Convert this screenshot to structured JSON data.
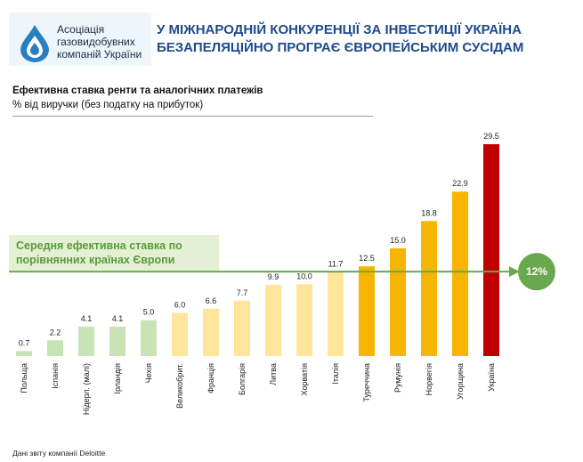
{
  "header": {
    "logo_lines": [
      "Асоціація",
      "газовидобувних",
      "компаній України"
    ],
    "headline_lines": [
      "У МІЖНАРОДНІЙ КОНКУРЕНЦІЇ ЗА ІНВЕСТИЦІЇ УКРАЇНА",
      "БЕЗАПЕЛЯЦІЙНО ПРОГРАЄ ЄВРОПЕЙСЬКИМ СУСІДАМ"
    ]
  },
  "average": {
    "label_lines": [
      "Середня ефективна ставка по",
      "порівнянних країнах Європи"
    ],
    "value_text": "12%"
  },
  "colors": {
    "green_light": "#c8e3b4",
    "yellow_light": "#fde59a",
    "orange": "#f7b500",
    "red": "#c00000",
    "avg_line": "#6aa84f",
    "headline": "#1d4a8c"
  },
  "chart_data": {
    "type": "bar",
    "title": "Ефективна ставка ренти та аналогічних платежів",
    "subtitle": "% від виручки (без податку на прибуток)",
    "categories": [
      "Польща",
      "Іспанія",
      "Нідерл. (малі)",
      "Ірландія",
      "Чехія",
      "Великобрит.",
      "Франція",
      "Болгарія",
      "Литва",
      "Хорватія",
      "Італія",
      "Туреччина",
      "Румунія",
      "Норвегія",
      "Угорщина",
      "Україна"
    ],
    "values": [
      0.7,
      2.2,
      4.1,
      4.1,
      5.0,
      6.0,
      6.6,
      7.7,
      9.9,
      10.0,
      11.7,
      12.5,
      15.0,
      18.8,
      22.9,
      29.5
    ],
    "value_labels": [
      "0.7",
      "2.2",
      "4.1",
      "4.1",
      "5.0",
      "6.0",
      "6.6",
      "7.7",
      "9.9",
      "10.0",
      "11.7",
      "12.5",
      "15.0",
      "18.8",
      "22.9",
      "29.5"
    ],
    "bar_color_groups": [
      "green",
      "green",
      "green",
      "green",
      "green",
      "yellow",
      "yellow",
      "yellow",
      "yellow",
      "yellow",
      "yellow",
      "orange",
      "orange",
      "orange",
      "orange",
      "red"
    ],
    "reference_line": 12,
    "ylim": [
      0,
      30
    ],
    "grid": false,
    "legend": "none"
  },
  "source": "Дані звіту компанії Deloitte"
}
